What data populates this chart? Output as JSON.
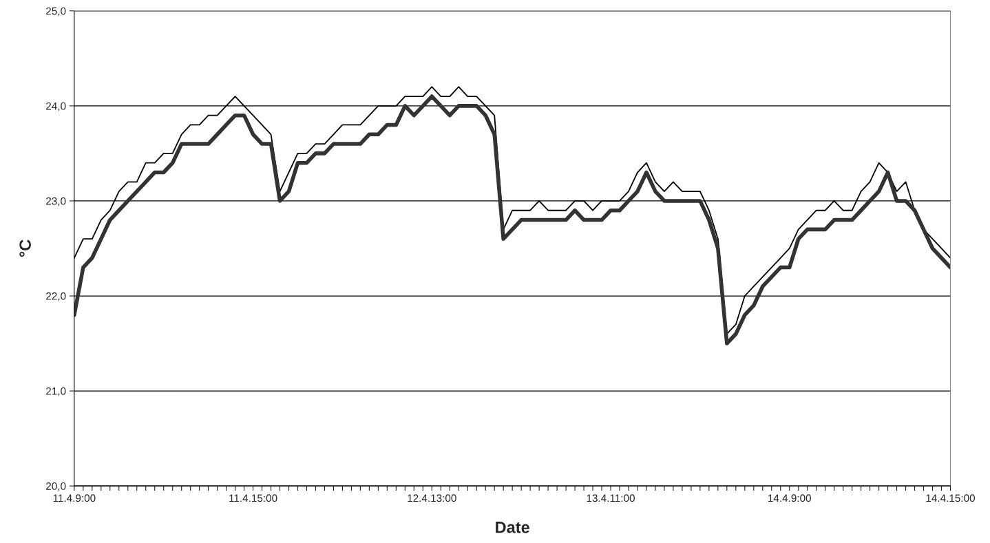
{
  "chart_data": {
    "type": "line",
    "xlabel": "Date",
    "ylabel": "°C",
    "categories": [
      "11.4.9:00",
      null,
      null,
      null,
      null,
      null,
      null,
      null,
      null,
      null,
      null,
      null,
      null,
      null,
      null,
      null,
      null,
      null,
      null,
      null,
      "11.4.15:00",
      null,
      null,
      null,
      null,
      null,
      null,
      null,
      null,
      null,
      null,
      null,
      null,
      null,
      null,
      null,
      null,
      null,
      null,
      null,
      "12.4.13:00",
      null,
      null,
      null,
      null,
      null,
      null,
      null,
      null,
      null,
      null,
      null,
      null,
      null,
      null,
      null,
      null,
      null,
      null,
      null,
      "13.4.11:00",
      null,
      null,
      null,
      null,
      null,
      null,
      null,
      null,
      null,
      null,
      null,
      null,
      null,
      null,
      null,
      null,
      null,
      null,
      null,
      "14.4.9:00",
      null,
      null,
      null,
      null,
      null,
      null,
      null,
      null,
      null,
      null,
      null,
      null,
      null,
      null,
      null,
      null,
      null,
      "14.4.15:00"
    ],
    "series": [
      {
        "color": "#000000",
        "values": [
          22.4,
          22.6,
          22.6,
          22.8,
          22.9,
          23.1,
          23.2,
          23.2,
          23.4,
          23.4,
          23.5,
          23.5,
          23.7,
          23.8,
          23.8,
          23.9,
          23.9,
          24.0,
          24.1,
          24.0,
          23.9,
          23.8,
          23.7,
          23.1,
          23.3,
          23.5,
          23.5,
          23.6,
          23.6,
          23.7,
          23.8,
          23.8,
          23.8,
          23.9,
          24.0,
          24.0,
          24.0,
          24.1,
          24.1,
          24.1,
          24.2,
          24.1,
          24.1,
          24.2,
          24.1,
          24.1,
          24.0,
          23.9,
          22.7,
          22.9,
          22.9,
          22.9,
          23.0,
          22.9,
          22.9,
          22.9,
          23.0,
          23.0,
          22.9,
          23.0,
          23.0,
          23.0,
          23.1,
          23.3,
          23.4,
          23.2,
          23.1,
          23.2,
          23.1,
          23.1,
          23.1,
          22.9,
          22.6,
          21.6,
          21.7,
          22.0,
          22.1,
          22.2,
          22.3,
          22.4,
          22.5,
          22.7,
          22.8,
          22.9,
          22.9,
          23.0,
          22.9,
          22.9,
          23.1,
          23.2,
          23.4,
          23.3,
          23.1,
          23.2,
          22.9,
          22.7,
          22.6,
          22.5,
          22.4
        ]
      },
      {
        "color": "#333333",
        "values": [
          21.8,
          22.3,
          22.4,
          22.6,
          22.8,
          22.9,
          23.0,
          23.1,
          23.2,
          23.3,
          23.3,
          23.4,
          23.6,
          23.6,
          23.6,
          23.6,
          23.7,
          23.8,
          23.9,
          23.9,
          23.7,
          23.6,
          23.6,
          23.0,
          23.1,
          23.4,
          23.4,
          23.5,
          23.5,
          23.6,
          23.6,
          23.6,
          23.6,
          23.7,
          23.7,
          23.8,
          23.8,
          24.0,
          23.9,
          24.0,
          24.1,
          24.0,
          23.9,
          24.0,
          24.0,
          24.0,
          23.9,
          23.7,
          22.6,
          22.7,
          22.8,
          22.8,
          22.8,
          22.8,
          22.8,
          22.8,
          22.9,
          22.8,
          22.8,
          22.8,
          22.9,
          22.9,
          23.0,
          23.1,
          23.3,
          23.1,
          23.0,
          23.0,
          23.0,
          23.0,
          23.0,
          22.8,
          22.5,
          21.5,
          21.6,
          21.8,
          21.9,
          22.1,
          22.2,
          22.3,
          22.3,
          22.6,
          22.7,
          22.7,
          22.7,
          22.8,
          22.8,
          22.8,
          22.9,
          23.0,
          23.1,
          23.3,
          23.0,
          23.0,
          22.9,
          22.7,
          22.5,
          22.4,
          22.3
        ]
      }
    ],
    "ylim": [
      20,
      25
    ],
    "yticks": [
      {
        "value": 20,
        "label": "20,0"
      },
      {
        "value": 21,
        "label": "21,0"
      },
      {
        "value": 22,
        "label": "22,0"
      },
      {
        "value": 23,
        "label": "23,0"
      },
      {
        "value": 24,
        "label": "24,0"
      },
      {
        "value": 25,
        "label": "25,0"
      }
    ],
    "grid": "y",
    "legend": false,
    "marker": "none",
    "line_style": "solid"
  }
}
